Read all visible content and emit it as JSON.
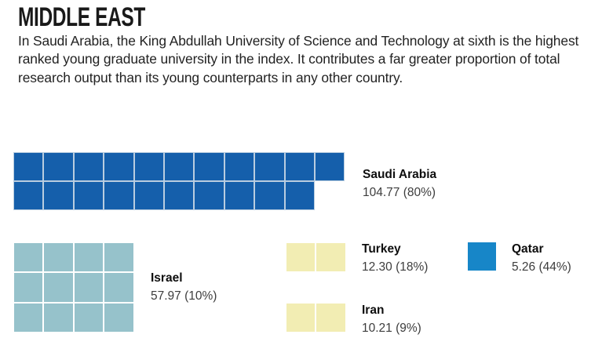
{
  "header": {
    "title": "MIDDLE EAST",
    "description": "In Saudi Arabia, the King Abdullah University of Science and Technology at sixth is the highest ranked young graduate university in the index. It contributes a far greater proportion of total research output than its young counterparts in any other country."
  },
  "chart_data": {
    "type": "waffle",
    "title": "MIDDLE EAST",
    "series": [
      {
        "name": "Saudi Arabia",
        "value": 104.77,
        "percent": 80,
        "label": "104.77 (80%)",
        "squares": 21,
        "rows": [
          11,
          10
        ],
        "color": "#155fab"
      },
      {
        "name": "Israel",
        "value": 57.97,
        "percent": 10,
        "label": "57.97 (10%)",
        "squares": 12,
        "rows": [
          4,
          4,
          4
        ],
        "color": "#96c2cb"
      },
      {
        "name": "Turkey",
        "value": 12.3,
        "percent": 18,
        "label": "12.30 (18%)",
        "squares": 2,
        "rows": [
          2
        ],
        "color": "#f2edb3"
      },
      {
        "name": "Qatar",
        "value": 5.26,
        "percent": 44,
        "label": "5.26 (44%)",
        "squares": 1,
        "rows": [
          1
        ],
        "color": "#1786c8"
      },
      {
        "name": "Iran",
        "value": 10.21,
        "percent": 9,
        "label": "10.21 (9%)",
        "squares": 2,
        "rows": [
          2
        ],
        "color": "#f2edb3"
      }
    ]
  },
  "colors": {
    "saudi_blue": "#155fab",
    "qatar_blue": "#1786c8",
    "israel_teal": "#96c2cb",
    "pale_yellow": "#f2edb3",
    "saudi_grid_line": "#b9cde0",
    "title_text": "#191919",
    "value_text": "#3d3d3d",
    "background": "#ffffff"
  }
}
